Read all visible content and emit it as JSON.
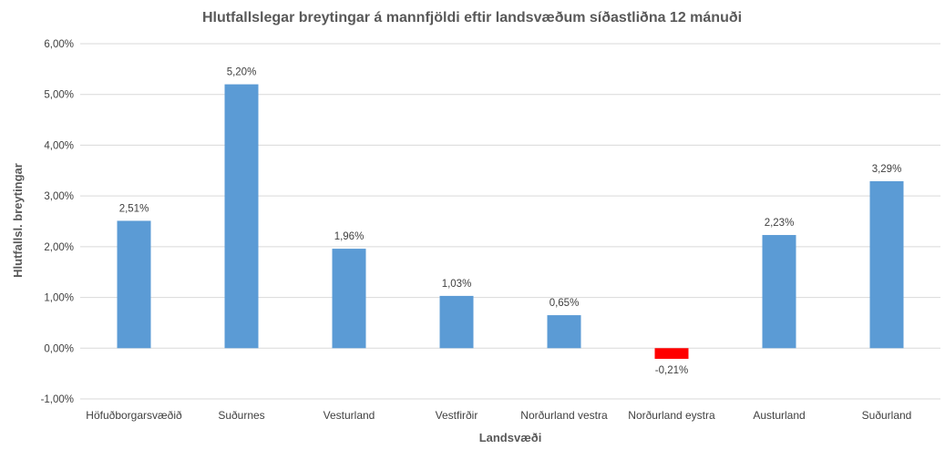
{
  "chart_data": {
    "type": "bar",
    "title": "Hlutfallslegar breytingar á mannfjöldi eftir landsvæðum síðastliðna 12 mánuði",
    "xlabel": "Landsvæði",
    "ylabel": "Hlutfallsl. breytingar",
    "ylim": [
      -1.0,
      6.0
    ],
    "yticks": [
      -1.0,
      0.0,
      1.0,
      2.0,
      3.0,
      4.0,
      5.0,
      6.0
    ],
    "ytick_labels": [
      "-1,00%",
      "0,00%",
      "1,00%",
      "2,00%",
      "3,00%",
      "4,00%",
      "5,00%",
      "6,00%"
    ],
    "grid": true,
    "legend": "none",
    "categories": [
      "Höfuðborgarsvæðið",
      "Suðurnes",
      "Vesturland",
      "Vestfirðir",
      "Norðurland vestra",
      "Norðurland eystra",
      "Austurland",
      "Suðurland"
    ],
    "values": [
      2.51,
      5.2,
      1.96,
      1.03,
      0.65,
      -0.21,
      2.23,
      3.29
    ],
    "data_labels": [
      "2,51%",
      "5,20%",
      "1,96%",
      "1,03%",
      "0,65%",
      "-0,21%",
      "2,23%",
      "3,29%"
    ],
    "colors": {
      "positive": "#5b9bd5",
      "negative": "#ff0000"
    }
  }
}
